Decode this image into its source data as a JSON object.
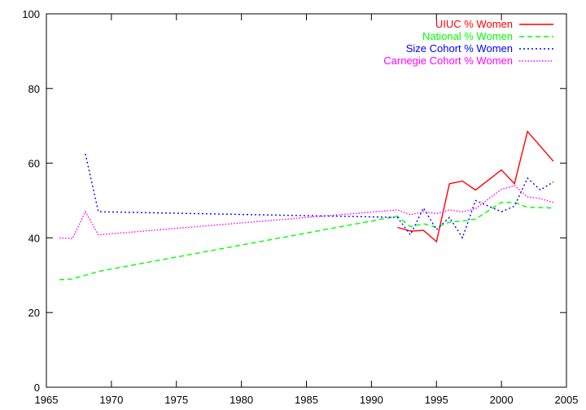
{
  "chart_data": {
    "type": "line",
    "title": "",
    "xlabel": "",
    "ylabel": "",
    "xlim": [
      1965,
      2005
    ],
    "ylim": [
      0,
      100
    ],
    "xticks": [
      1965,
      1970,
      1975,
      1980,
      1985,
      1990,
      1995,
      2000,
      2005
    ],
    "yticks": [
      0,
      20,
      40,
      60,
      80,
      100
    ],
    "grid": false,
    "legend_position": "top-right",
    "series": [
      {
        "name": "UIUC % Women",
        "color": "#ff0000",
        "dash": "solid",
        "points": [
          [
            1992,
            42.8
          ],
          [
            1993,
            41.8
          ],
          [
            1994,
            42.0
          ],
          [
            1995,
            39.0
          ],
          [
            1996,
            54.5
          ],
          [
            1997,
            55.2
          ],
          [
            1998,
            52.8
          ],
          [
            2000,
            58.2
          ],
          [
            2001,
            54.5
          ],
          [
            2002,
            68.5
          ],
          [
            2004,
            60.5
          ]
        ]
      },
      {
        "name": "National % Women",
        "color": "#00ff00",
        "dash": "dashed",
        "points": [
          [
            1966,
            28.8
          ],
          [
            1967,
            29.0
          ],
          [
            1969,
            31.0
          ],
          [
            1992,
            45.8
          ],
          [
            1993,
            43.0
          ],
          [
            1994,
            43.8
          ],
          [
            1995,
            42.8
          ],
          [
            1996,
            44.2
          ],
          [
            1997,
            44.5
          ],
          [
            1998,
            45.0
          ],
          [
            2000,
            49.5
          ],
          [
            2001,
            49.5
          ],
          [
            2002,
            48.2
          ],
          [
            2004,
            48.0
          ]
        ]
      },
      {
        "name": "Size Cohort % Women",
        "color": "#0000ff",
        "dash": "dotted",
        "points": [
          [
            1968,
            62.5
          ],
          [
            1969,
            47.0
          ],
          [
            1992,
            45.5
          ],
          [
            1993,
            40.8
          ],
          [
            1994,
            48.0
          ],
          [
            1995,
            42.2
          ],
          [
            1996,
            45.5
          ],
          [
            1997,
            40.0
          ],
          [
            1998,
            50.0
          ],
          [
            2000,
            47.0
          ],
          [
            2001,
            48.5
          ],
          [
            2002,
            56.0
          ],
          [
            2003,
            52.8
          ],
          [
            2004,
            55.0
          ]
        ]
      },
      {
        "name": "Carnegie Cohort % Women",
        "color": "#ff00ff",
        "dash": "dotted-fine",
        "points": [
          [
            1966,
            40.0
          ],
          [
            1967,
            39.8
          ],
          [
            1968,
            47.0
          ],
          [
            1969,
            40.8
          ],
          [
            1992,
            47.5
          ],
          [
            1993,
            46.2
          ],
          [
            1994,
            47.0
          ],
          [
            1995,
            46.5
          ],
          [
            1996,
            47.5
          ],
          [
            1997,
            47.0
          ],
          [
            1998,
            47.8
          ],
          [
            2000,
            53.0
          ],
          [
            2001,
            54.0
          ],
          [
            2002,
            51.0
          ],
          [
            2003,
            50.5
          ],
          [
            2004,
            49.5
          ]
        ]
      }
    ]
  }
}
